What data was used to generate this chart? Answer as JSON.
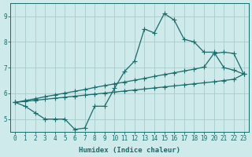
{
  "title": "",
  "xlabel": "Humidex (Indice chaleur)",
  "ylabel": "",
  "bg_color": "#ceeaea",
  "line_color": "#1a6b6b",
  "grid_color": "#aacccc",
  "xlim": [
    -0.5,
    23.5
  ],
  "ylim": [
    4.5,
    9.5
  ],
  "xticks": [
    0,
    1,
    2,
    3,
    4,
    5,
    6,
    7,
    8,
    9,
    10,
    11,
    12,
    13,
    14,
    15,
    16,
    17,
    18,
    19,
    20,
    21,
    22,
    23
  ],
  "yticks": [
    5,
    6,
    7,
    8,
    9
  ],
  "line1_x": [
    0,
    1,
    2,
    3,
    4,
    5,
    6,
    7,
    8,
    9,
    10,
    11,
    12,
    13,
    14,
    15,
    16,
    17,
    18,
    19,
    20,
    21,
    22,
    23
  ],
  "line1_y": [
    5.65,
    5.5,
    5.25,
    5.0,
    5.0,
    5.0,
    4.6,
    4.65,
    5.5,
    5.5,
    6.2,
    6.85,
    7.25,
    8.5,
    8.35,
    9.1,
    8.85,
    8.1,
    8.0,
    7.6,
    7.6,
    7.0,
    6.9,
    6.75
  ],
  "line2_x": [
    0,
    1,
    2,
    3,
    4,
    5,
    6,
    7,
    8,
    9,
    10,
    11,
    12,
    13,
    14,
    15,
    16,
    17,
    18,
    19,
    20,
    21,
    22,
    23
  ],
  "line2_y": [
    5.65,
    5.72,
    5.79,
    5.87,
    5.94,
    6.01,
    6.08,
    6.15,
    6.23,
    6.3,
    6.37,
    6.44,
    6.51,
    6.58,
    6.66,
    6.73,
    6.8,
    6.87,
    6.94,
    7.02,
    7.55,
    7.6,
    7.55,
    6.75
  ],
  "line3_x": [
    0,
    1,
    2,
    3,
    4,
    5,
    6,
    7,
    8,
    9,
    10,
    11,
    12,
    13,
    14,
    15,
    16,
    17,
    18,
    19,
    20,
    21,
    22,
    23
  ],
  "line3_y": [
    5.65,
    5.69,
    5.73,
    5.77,
    5.81,
    5.85,
    5.89,
    5.93,
    5.97,
    6.01,
    6.05,
    6.09,
    6.13,
    6.17,
    6.21,
    6.25,
    6.29,
    6.33,
    6.37,
    6.41,
    6.45,
    6.5,
    6.55,
    6.75
  ],
  "marker_size": 2.5,
  "linewidth": 0.9
}
